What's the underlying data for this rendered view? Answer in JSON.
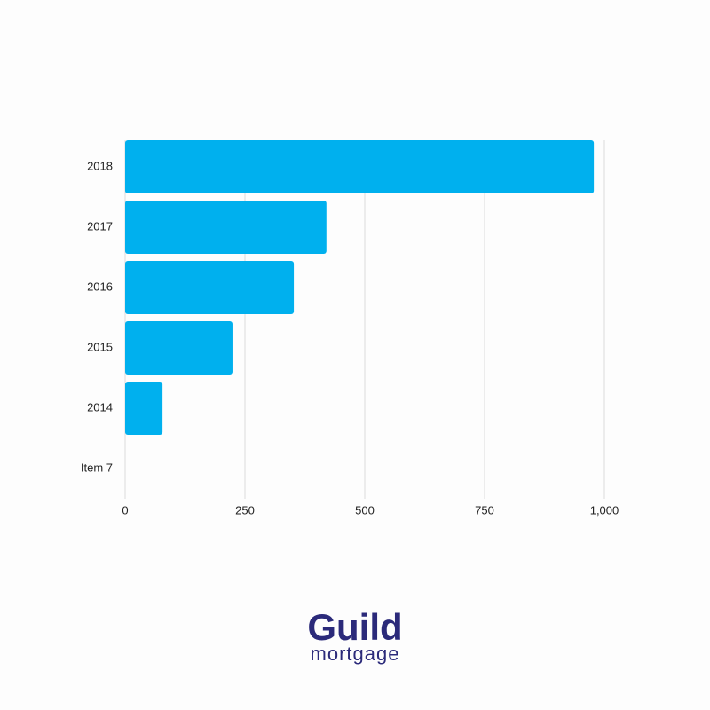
{
  "chart_data": {
    "type": "bar",
    "orientation": "horizontal",
    "categories": [
      "2018",
      "2017",
      "2016",
      "2015",
      "2014",
      "Item 7"
    ],
    "values": [
      978,
      420,
      352,
      224,
      78,
      null
    ],
    "color": "#00b0ee",
    "xlim": [
      0,
      1000
    ],
    "xticks": [
      0,
      250,
      500,
      750,
      {
        "value": 1000,
        "label": "1,000"
      }
    ],
    "grid": true
  },
  "logo": {
    "name": "Guild",
    "tagline": "mortgage"
  }
}
